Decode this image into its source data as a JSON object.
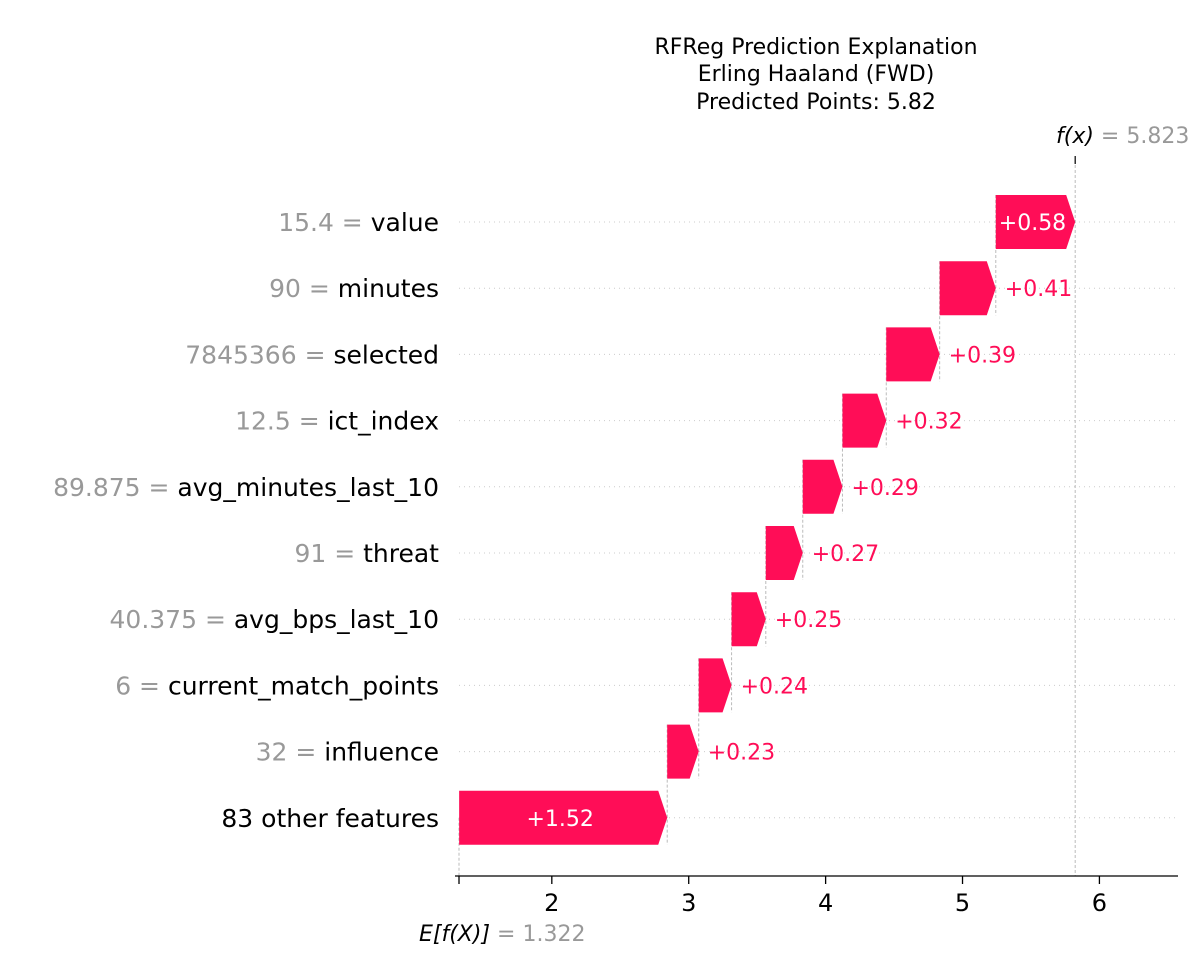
{
  "chart_data": {
    "type": "waterfall",
    "title": [
      "RFReg Prediction Explanation",
      "Erling Haaland (FWD)",
      "Predicted Points: 5.82"
    ],
    "base_value": 1.322,
    "base_label": "E[f(X)]",
    "base_display": "1.322",
    "output_value": 5.823,
    "output_label": "f(x)",
    "output_display": "5.823",
    "xlim": [
      1.322,
      6.57
    ],
    "xticks": [
      2,
      3,
      4,
      5,
      6
    ],
    "positive_color": "#ff0d57",
    "features": [
      {
        "value": "15.4",
        "name": "value",
        "shap": 0.58,
        "label": "+0.58"
      },
      {
        "value": "90",
        "name": "minutes",
        "shap": 0.41,
        "label": "+0.41"
      },
      {
        "value": "7845366",
        "name": "selected",
        "shap": 0.39,
        "label": "+0.39"
      },
      {
        "value": "12.5",
        "name": "ict_index",
        "shap": 0.32,
        "label": "+0.32"
      },
      {
        "value": "89.875",
        "name": "avg_minutes_last_10",
        "shap": 0.29,
        "label": "+0.29"
      },
      {
        "value": "91",
        "name": "threat",
        "shap": 0.27,
        "label": "+0.27"
      },
      {
        "value": "40.375",
        "name": "avg_bps_last_10",
        "shap": 0.25,
        "label": "+0.25"
      },
      {
        "value": "6",
        "name": "current_match_points",
        "shap": 0.24,
        "label": "+0.24"
      },
      {
        "value": "32",
        "name": "influence",
        "shap": 0.23,
        "label": "+0.23"
      },
      {
        "value": "",
        "name": "83 other features",
        "shap": 1.52,
        "label": "+1.52"
      }
    ]
  }
}
